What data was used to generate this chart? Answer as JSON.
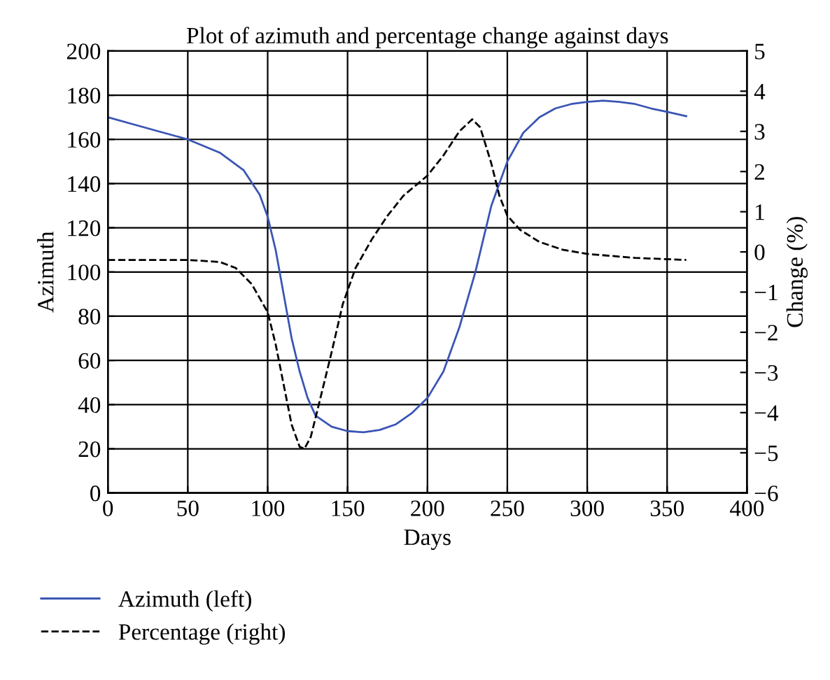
{
  "chart_data": {
    "type": "line",
    "title": "Plot of azimuth and percentage change against days",
    "xlabel": "Days",
    "ylabel": "Azimuth",
    "y2label": "Change (%)",
    "xlim": [
      0,
      400
    ],
    "xticks": [
      0,
      50,
      100,
      150,
      200,
      250,
      300,
      350,
      400
    ],
    "ylim": [
      0,
      200
    ],
    "yticks": [
      0,
      20,
      40,
      60,
      80,
      100,
      120,
      140,
      160,
      180,
      200
    ],
    "y2lim": [
      -6,
      5
    ],
    "y2ticks": [
      {
        "value": -6,
        "label": "−6"
      },
      {
        "value": -5,
        "label": "−5"
      },
      {
        "value": -4,
        "label": "−4"
      },
      {
        "value": -3,
        "label": "−3"
      },
      {
        "value": -2,
        "label": "−2"
      },
      {
        "value": -1,
        "label": "−1"
      },
      0,
      1,
      2,
      3,
      4,
      5
    ],
    "grid": true,
    "legend": "bottom left",
    "marker": "none",
    "series": [
      {
        "name": "Azimuth (left)",
        "color": "#3a55b4",
        "line_style": "solid",
        "x": [
          0,
          25,
          50,
          70,
          85,
          95,
          100,
          105,
          110,
          115,
          120,
          125,
          130,
          140,
          150,
          160,
          170,
          180,
          190,
          200,
          210,
          220,
          230,
          240,
          250,
          260,
          270,
          280,
          290,
          300,
          310,
          320,
          330,
          340,
          350,
          362
        ],
        "values": [
          170,
          165,
          160,
          154,
          146,
          135,
          125,
          110,
          90,
          70,
          55,
          43,
          35,
          30,
          28,
          27.5,
          28.5,
          31,
          36,
          43,
          55,
          75,
          100,
          130,
          150,
          163,
          170,
          174,
          176,
          177,
          177.5,
          177,
          176,
          174,
          172.5,
          170.5
        ]
      },
      {
        "name": "Percentage (right)",
        "color": "#000000",
        "line_style": "dashed",
        "axis": "y2",
        "x": [
          0,
          25,
          50,
          70,
          80,
          90,
          100,
          105,
          110,
          115,
          120,
          123,
          127,
          132,
          140,
          147,
          155,
          165,
          175,
          185,
          200,
          210,
          220,
          228,
          233,
          240,
          245,
          250,
          258,
          270,
          285,
          300,
          330,
          362
        ],
        "values": [
          -0.2,
          -0.2,
          -0.2,
          -0.25,
          -0.4,
          -0.8,
          -1.5,
          -2.3,
          -3.3,
          -4.3,
          -4.85,
          -4.9,
          -4.6,
          -3.8,
          -2.5,
          -1.3,
          -0.4,
          0.3,
          0.9,
          1.4,
          1.9,
          2.4,
          3.0,
          3.3,
          3.1,
          2.2,
          1.4,
          0.9,
          0.55,
          0.25,
          0.05,
          -0.05,
          -0.15,
          -0.2
        ]
      }
    ]
  }
}
